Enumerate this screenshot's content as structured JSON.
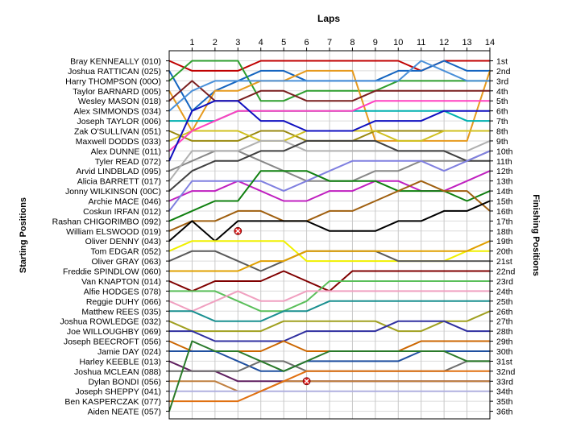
{
  "chart_data": {
    "type": "line",
    "title": "Laps",
    "y_left_label": "Starting Positions",
    "y_right_label": "Finishing Positions",
    "x_ticks": [
      1,
      2,
      3,
      4,
      5,
      6,
      7,
      8,
      9,
      10,
      11,
      12,
      13,
      14
    ],
    "x_range": [
      0,
      14
    ],
    "y_range": [
      1,
      36
    ],
    "grid": true,
    "drivers": [
      "Bray KENNEALLY (010)",
      "Joshua RATTICAN (025)",
      "Harry THOMPSON (00O)",
      "Taylor BARNARD (005)",
      "Wesley MASON (018)",
      "Alex SIMMONDS (034)",
      "Joseph TAYLOR (006)",
      "Zak O'SULLIVAN (051)",
      "Maxwell  DODDS (033)",
      "Alex DUNNE (011)",
      "Tyler READ (072)",
      "Arvid LINDBLAD (095)",
      "Alicia BARRETT (017)",
      "Jonny WILKINSON (00C)",
      "Archie MACE (046)",
      "Coskun  IRFAN (012)",
      "Rashan CHIGORIMBO (092)",
      "William ELSWOOD (019)",
      "Oliver DENNY (043)",
      "Tom EDGAR (052)",
      "Oliver GRAY (063)",
      "Freddie SPINDLOW (060)",
      "Van KNAPTON (014)",
      "Alfie HODGES (078)",
      "Reggie  DUHY (066)",
      "Matthew REES (035)",
      "Joshua ROWLEDGE (032)",
      "Joe WILLOUGHBY (069)",
      "Joseph BEECROFT (056)",
      "Jamie DAY (024)",
      "Harley KEEBLE (013)",
      "Joshua MCLEAN (088)",
      "Dylan BONDI (056)",
      "Joseph SHEPPY (041)",
      "Ben KASPERCZAK (077)",
      "Aiden NEATE (057)"
    ],
    "finishing_positions": [
      "1st",
      "2nd",
      "3rd",
      "4th",
      "5th",
      "6th",
      "7th",
      "8th",
      "9th",
      "10th",
      "11th",
      "12th",
      "13th",
      "14th",
      "15th",
      "16th",
      "17th",
      "18th",
      "19th",
      "20th",
      "21st",
      "22nd",
      "23rd",
      "24th",
      "25th",
      "26th",
      "27th",
      "28th",
      "29th",
      "30th",
      "31st",
      "32nd",
      "33rd",
      "34th",
      "35th",
      "36th"
    ],
    "series": [
      {
        "color": "#c00000",
        "positions": [
          1,
          2,
          2,
          2,
          1,
          1,
          1,
          1,
          1,
          1,
          1,
          2,
          1,
          1,
          1
        ]
      },
      {
        "color": "#1565c0",
        "positions": [
          2,
          6,
          4,
          3,
          2,
          2,
          3,
          3,
          3,
          3,
          2,
          2,
          1,
          2,
          2
        ]
      },
      {
        "color": "#2e9e2e",
        "positions": [
          3,
          1,
          1,
          1,
          5,
          5,
          4,
          4,
          4,
          4,
          3,
          3,
          3,
          3,
          3
        ]
      },
      {
        "color": "#e69a1e",
        "positions": [
          4,
          8,
          4,
          4,
          3,
          3,
          2,
          2,
          2,
          9,
          9,
          9,
          9,
          9,
          2
        ]
      },
      {
        "color": "#7a1f1f",
        "positions": [
          5,
          3,
          5,
          5,
          4,
          4,
          5,
          5,
          5,
          4,
          4,
          4,
          4,
          4,
          4
        ]
      },
      {
        "color": "#4a90d9",
        "positions": [
          6,
          4,
          3,
          3,
          3,
          3,
          3,
          3,
          3,
          3,
          3,
          1,
          2,
          3,
          3
        ]
      },
      {
        "color": "#00b0b0",
        "positions": [
          7,
          7,
          7,
          6,
          6,
          6,
          6,
          6,
          6,
          6,
          6,
          6,
          6,
          7,
          7
        ]
      },
      {
        "color": "#9a8a10",
        "positions": [
          8,
          9,
          9,
          9,
          8,
          8,
          9,
          9,
          9,
          8,
          8,
          8,
          8,
          8,
          8
        ]
      },
      {
        "color": "#d0c020",
        "positions": [
          9,
          8,
          8,
          8,
          9,
          9,
          8,
          8,
          8,
          8,
          9,
          9,
          8,
          8,
          8
        ]
      },
      {
        "color": "#ff40c0",
        "positions": [
          10,
          8,
          7,
          6,
          6,
          6,
          6,
          6,
          6,
          5,
          5,
          5,
          5,
          5,
          5
        ]
      },
      {
        "color": "#1010c0",
        "positions": [
          11,
          6,
          5,
          5,
          7,
          7,
          8,
          8,
          8,
          7,
          7,
          7,
          6,
          6,
          6
        ]
      },
      {
        "color": "#888888",
        "positions": [
          12,
          11,
          10,
          10,
          11,
          12,
          13,
          13,
          13,
          12,
          12,
          11,
          11,
          11,
          10
        ]
      },
      {
        "color": "#b0b0b0",
        "positions": [
          13,
          10,
          10,
          10,
          9,
          9,
          10,
          10,
          10,
          10,
          10,
          10,
          10,
          10,
          9
        ]
      },
      {
        "color": "#404040",
        "positions": [
          14,
          12,
          11,
          11,
          10,
          10,
          9,
          9,
          9,
          9,
          10,
          10,
          10,
          11,
          11
        ]
      },
      {
        "color": "#c020c0",
        "positions": [
          15,
          14,
          14,
          13,
          14,
          15,
          15,
          14,
          14,
          13,
          13,
          14,
          14,
          13,
          12
        ]
      },
      {
        "color": "#8080e0",
        "positions": [
          16,
          13,
          13,
          13,
          13,
          14,
          13,
          12,
          11,
          11,
          11,
          11,
          12,
          11,
          10
        ]
      },
      {
        "color": "#108010",
        "positions": [
          17,
          16,
          15,
          15,
          12,
          12,
          12,
          13,
          13,
          13,
          14,
          14,
          14,
          15,
          14
        ]
      },
      {
        "color": "#a06010",
        "positions": [
          18,
          17,
          17,
          16,
          16,
          17,
          17,
          16,
          16,
          15,
          14,
          13,
          14,
          14,
          16
        ]
      },
      {
        "color": "#000000",
        "positions": [
          19,
          17,
          19,
          17,
          17,
          17,
          17,
          18,
          18,
          18,
          17,
          17,
          16,
          16,
          15
        ]
      },
      {
        "color": "#f0f000",
        "positions": [
          20,
          19,
          19,
          19,
          19,
          19,
          21,
          21,
          21,
          21,
          21,
          21,
          21,
          20,
          20
        ]
      },
      {
        "color": "#5a5a5a",
        "positions": [
          21,
          20,
          20,
          21,
          22,
          21,
          20,
          20,
          20,
          20,
          21,
          21,
          21,
          21,
          21
        ]
      },
      {
        "color": "#e0a000",
        "positions": [
          22,
          22,
          22,
          22,
          21,
          21,
          20,
          20,
          20,
          20,
          20,
          20,
          20,
          20,
          19
        ]
      },
      {
        "color": "#800000",
        "positions": [
          23,
          24,
          23,
          23,
          23,
          22,
          23,
          24,
          22,
          22,
          22,
          22,
          22,
          22,
          22
        ]
      },
      {
        "color": "#5abf5a",
        "positions": [
          24,
          24,
          24,
          25,
          26,
          26,
          25,
          23,
          23,
          23,
          23,
          23,
          23,
          23,
          23
        ]
      },
      {
        "color": "#f0a0c0",
        "positions": [
          25,
          26,
          25,
          24,
          25,
          25,
          24,
          24,
          24,
          24,
          24,
          24,
          24,
          24,
          24
        ]
      },
      {
        "color": "#1a9090",
        "positions": [
          26,
          26,
          27,
          27,
          27,
          26,
          26,
          25,
          25,
          25,
          25,
          25,
          25,
          25,
          25
        ]
      },
      {
        "color": "#a0a020",
        "positions": [
          27,
          28,
          28,
          28,
          28,
          27,
          27,
          27,
          27,
          27,
          28,
          28,
          27,
          27,
          26
        ]
      },
      {
        "color": "#3030a0",
        "positions": [
          28,
          28,
          29,
          29,
          29,
          29,
          28,
          28,
          28,
          28,
          27,
          27,
          27,
          28,
          28
        ]
      },
      {
        "color": "#cc6600",
        "positions": [
          29,
          30,
          30,
          30,
          30,
          29,
          30,
          30,
          30,
          30,
          30,
          29,
          29,
          29,
          29
        ]
      },
      {
        "color": "#2050a0",
        "positions": [
          30,
          30,
          30,
          31,
          32,
          32,
          31,
          31,
          31,
          31,
          31,
          30,
          30,
          30,
          30
        ]
      },
      {
        "color": "#602060",
        "positions": [
          31,
          32,
          32,
          33,
          33,
          33,
          33,
          33,
          33,
          33,
          33,
          33,
          33,
          33,
          33
        ]
      },
      {
        "color": "#707070",
        "positions": [
          32,
          32,
          32,
          32,
          31,
          31,
          32,
          32,
          32,
          32,
          32,
          32,
          32,
          31,
          31
        ]
      },
      {
        "color": "#c08040",
        "positions": [
          33,
          33,
          33,
          34,
          34,
          33,
          33,
          33,
          33,
          33,
          33,
          33,
          33,
          33,
          33
        ]
      },
      {
        "color": "#b0b0e0",
        "positions": [
          34,
          34,
          34,
          34,
          34,
          34,
          34,
          34,
          34,
          34,
          34,
          34,
          34,
          34,
          34
        ]
      },
      {
        "color": "#e07010",
        "positions": [
          35,
          35,
          35,
          35,
          34,
          33,
          32,
          32,
          32,
          32,
          32,
          32,
          32,
          32,
          32
        ]
      },
      {
        "color": "#2a7a2a",
        "positions": [
          36,
          29,
          30,
          30,
          31,
          32,
          31,
          30,
          30,
          30,
          30,
          30,
          30,
          31,
          31
        ]
      }
    ],
    "retirements": [
      {
        "lap": 3,
        "position": 18
      },
      {
        "lap": 6,
        "position": 33
      }
    ]
  }
}
